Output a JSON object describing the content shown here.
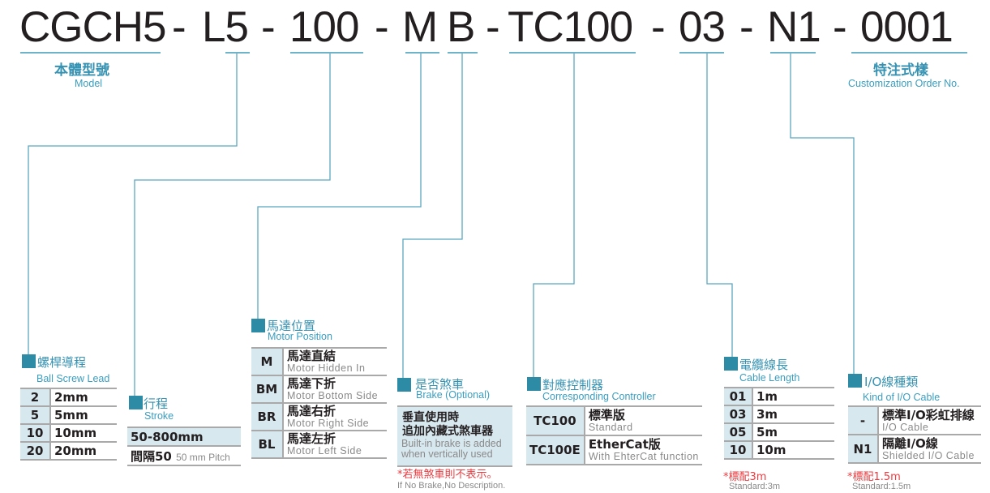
{
  "code": {
    "model": "CGCH5",
    "lead": "L5",
    "stroke": "100",
    "motor": "M",
    "brake": "B",
    "controller": "TC100",
    "cable": "03",
    "io": "N1",
    "custom": "0001",
    "sep": "-"
  },
  "model_label": {
    "zh": "本體型號",
    "en": "Model"
  },
  "custom_label": {
    "zh": "特注式樣",
    "en": "Customization Order No."
  },
  "lead": {
    "zh": "螺桿導程",
    "en": "Ball Screw Lead",
    "rows": [
      {
        "k": "2",
        "v": "2mm"
      },
      {
        "k": "5",
        "v": "5mm"
      },
      {
        "k": "10",
        "v": "10mm"
      },
      {
        "k": "20",
        "v": "20mm"
      }
    ]
  },
  "stroke": {
    "zh": "行程",
    "en": "Stroke",
    "range": "50-800mm",
    "pitch_zh": "間隔50",
    "pitch_en": "50 mm Pitch"
  },
  "motor": {
    "zh": "馬達位置",
    "en": "Motor Position",
    "rows": [
      {
        "k": "M",
        "zh": "馬達直結",
        "en": "Motor Hidden In"
      },
      {
        "k": "BM",
        "zh": "馬達下折",
        "en": "Motor Bottom Side"
      },
      {
        "k": "BR",
        "zh": "馬達右折",
        "en": "Motor Right Side"
      },
      {
        "k": "BL",
        "zh": "馬達左折",
        "en": "Motor Left Side"
      }
    ]
  },
  "brake": {
    "zh": "是否煞車",
    "en": "Brake (Optional)",
    "desc_zh1": "垂直使用時",
    "desc_zh2": "追加內藏式煞車器",
    "desc_en1": "Built-in brake is added",
    "desc_en2": "when vertically used",
    "note_zh": "*若無煞車則不表示。",
    "note_en": "If No Brake,No Description."
  },
  "controller": {
    "zh": "對應控制器",
    "en": "Corresponding Controller",
    "rows": [
      {
        "k": "TC100",
        "zh": "標準版",
        "en": "Standard"
      },
      {
        "k": "TC100E",
        "zh": "EtherCat版",
        "en": "With EhterCat function"
      }
    ]
  },
  "cable": {
    "zh": "電纜線長",
    "en": "Cable Length",
    "rows": [
      {
        "k": "01",
        "v": "1m"
      },
      {
        "k": "03",
        "v": "3m"
      },
      {
        "k": "05",
        "v": "5m"
      },
      {
        "k": "10",
        "v": "10m"
      }
    ],
    "note_zh": "*標配3m",
    "note_en": "Standard:3m"
  },
  "io": {
    "zh": "I/O線種類",
    "en": "Kind of I/O Cable",
    "rows": [
      {
        "k": "-",
        "zh": "標準I/O彩虹排線",
        "en": "I/O Cable"
      },
      {
        "k": "N1",
        "zh": "隔離I/O線",
        "en": "Shielded I/O Cable"
      }
    ],
    "note_zh": "*標配1.5m",
    "note_en": "Standard:1.5m"
  },
  "colors": {
    "accent": "#2e8ba6",
    "line": "#5aa7c0",
    "key_bg": "#d8e8ef",
    "note": "#ec3b3f"
  }
}
